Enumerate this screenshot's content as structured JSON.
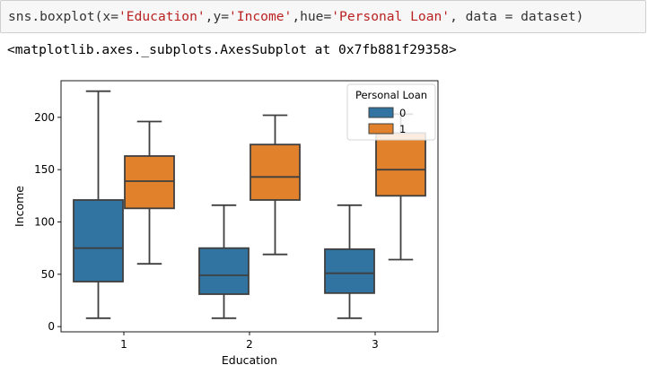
{
  "code_cell": {
    "parts": [
      {
        "text": "sns.boxplot(x=",
        "kind": "plain"
      },
      {
        "text": "'Education'",
        "kind": "str"
      },
      {
        "text": ",y=",
        "kind": "plain"
      },
      {
        "text": "'Income'",
        "kind": "str"
      },
      {
        "text": ",hue=",
        "kind": "plain"
      },
      {
        "text": "'Personal Loan'",
        "kind": "str"
      },
      {
        "text": ", data = dataset)",
        "kind": "plain"
      }
    ]
  },
  "output": {
    "repr": "<matplotlib.axes._subplots.AxesSubplot at 0x7fb881f29358>"
  },
  "colors": {
    "hue_0": "#3274a1",
    "hue_1": "#e1812c",
    "line": "#3f3f3f",
    "code_string": "#ba2121"
  },
  "chart_data": {
    "type": "boxplot",
    "xlabel": "Education",
    "ylabel": "Income",
    "categories": [
      "1",
      "2",
      "3"
    ],
    "ylim": [
      -5,
      235
    ],
    "yticks": [
      0,
      50,
      100,
      150,
      200
    ],
    "legend": {
      "title": "Personal Loan",
      "placement": "top-right",
      "entries": [
        "0",
        "1"
      ]
    },
    "series": [
      {
        "name": "0",
        "boxes": [
          {
            "min": 8,
            "q1": 43,
            "median": 75,
            "q3": 121,
            "max": 225
          },
          {
            "min": 8,
            "q1": 31,
            "median": 49,
            "q3": 75,
            "max": 116
          },
          {
            "min": 8,
            "q1": 32,
            "median": 51,
            "q3": 74,
            "max": 116
          }
        ]
      },
      {
        "name": "1",
        "boxes": [
          {
            "min": 60,
            "q1": 113,
            "median": 139,
            "q3": 163,
            "max": 196
          },
          {
            "min": 69,
            "q1": 121,
            "median": 143,
            "q3": 174,
            "max": 202
          },
          {
            "min": 64,
            "q1": 125,
            "median": 150,
            "q3": 185,
            "max": 203
          }
        ]
      }
    ]
  }
}
